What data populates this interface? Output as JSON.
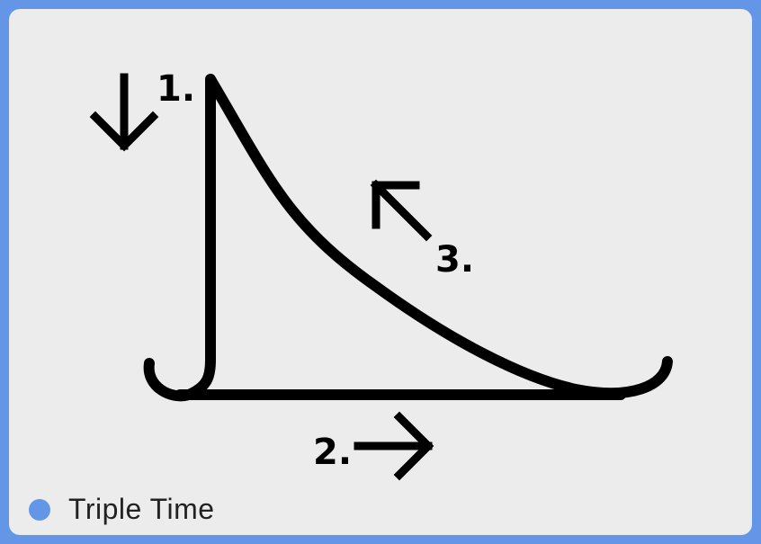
{
  "diagram": {
    "title": "Triple Time",
    "steps": [
      {
        "label": "1.",
        "direction": "down"
      },
      {
        "label": "2.",
        "direction": "right"
      },
      {
        "label": "3.",
        "direction": "up-left"
      }
    ]
  },
  "colors": {
    "frame": "#6496e8",
    "background": "#ececec",
    "stroke": "#000000",
    "legend_dot": "#6496e8"
  }
}
